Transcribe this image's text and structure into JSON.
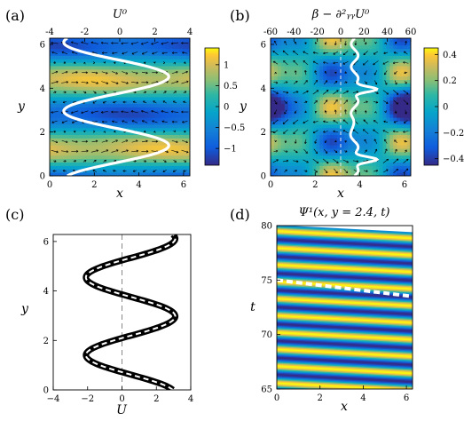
{
  "chart_data": [
    {
      "panel": "(a)",
      "type": "heatmap",
      "title": "U⁰",
      "xlabel": "x",
      "ylabel": "y",
      "xlim": [
        0,
        6.283
      ],
      "ylim": [
        0,
        6.283
      ],
      "x_ticks": [
        "0",
        "2",
        "4",
        "6"
      ],
      "y_ticks": [
        "0",
        "2",
        "4",
        "6"
      ],
      "top_axis": {
        "label": "",
        "lim": [
          -4,
          4
        ],
        "ticks": [
          "-4",
          "-2",
          "0",
          "2",
          "4"
        ]
      },
      "colorbar": {
        "min": -1.4,
        "max": 1.4,
        "ticks": [
          1,
          0.5,
          0,
          -0.5,
          -1
        ],
        "tick_labels": [
          "1",
          "0.5",
          "0",
          "−0.5",
          "−1"
        ]
      },
      "profile_curve": {
        "color": "white",
        "description": "U⁰(y) plotted against top axis"
      },
      "quiver": true
    },
    {
      "panel": "(b)",
      "type": "heatmap",
      "title": "β − ∂²ᵧᵧU⁰",
      "xlabel": "x",
      "ylabel": "y",
      "xlim": [
        0,
        6.283
      ],
      "ylim": [
        0,
        6.283
      ],
      "x_ticks": [
        "0",
        "2",
        "4",
        "6"
      ],
      "y_ticks": [
        "0",
        "2",
        "4",
        "6"
      ],
      "top_axis": {
        "label": "",
        "lim": [
          -60,
          60
        ],
        "ticks": [
          "-60",
          "-40",
          "-20",
          "0",
          "20",
          "40",
          "60"
        ]
      },
      "colorbar": {
        "min": -0.45,
        "max": 0.45,
        "ticks": [
          0.4,
          0.2,
          0,
          -0.2,
          -0.4
        ],
        "tick_labels": [
          "0.4",
          "0.2",
          "0",
          "−0.2",
          "−0.4"
        ]
      },
      "profile_curve": {
        "color": "white"
      },
      "quiver": true
    },
    {
      "panel": "(c)",
      "type": "line",
      "xlabel": "U",
      "ylabel": "y",
      "xlim": [
        -4,
        4
      ],
      "ylim": [
        0,
        6.283
      ],
      "x_ticks": [
        "−4",
        "−2",
        "0",
        "2",
        "4"
      ],
      "y_ticks": [
        "0",
        "2",
        "4",
        "6"
      ],
      "series": [
        {
          "style": "thick black band",
          "amplitude": 3.0
        },
        {
          "style": "white dashed",
          "amplitude": 3.0
        }
      ]
    },
    {
      "panel": "(d)",
      "type": "heatmap",
      "title": "Ψ¹(x, y = 2.4, t)",
      "xlabel": "x",
      "ylabel": "t",
      "xlim": [
        0,
        6.283
      ],
      "ylim": [
        65,
        80
      ],
      "x_ticks": [
        "0",
        "2",
        "4",
        "6"
      ],
      "y_ticks": [
        "65",
        "70",
        "75",
        "80"
      ],
      "dashed_line": {
        "x": [
          0,
          6.283
        ],
        "t": [
          75.0,
          73.5
        ]
      }
    }
  ]
}
